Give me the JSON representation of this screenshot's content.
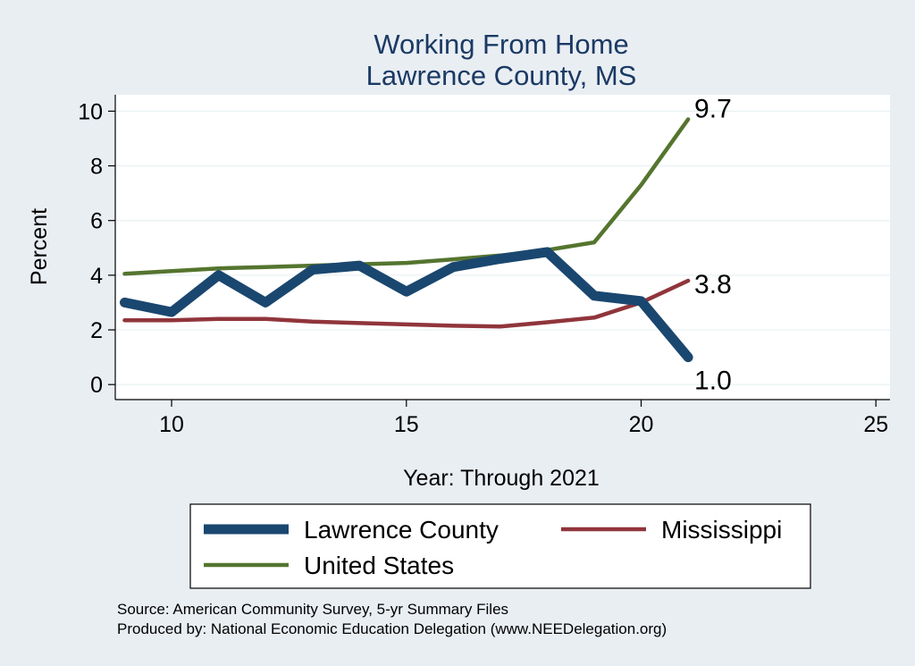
{
  "chart_data": {
    "type": "line",
    "title": [
      "Working From Home",
      "Lawrence County, MS"
    ],
    "xlabel": "Year: Through 2021",
    "ylabel": "Percent",
    "xlim": [
      8.8,
      25.3
    ],
    "ylim": [
      -0.55,
      10.6
    ],
    "xticks": [
      10,
      15,
      20,
      25
    ],
    "yticks": [
      0,
      2,
      4,
      6,
      8,
      10
    ],
    "grid": true,
    "legend_position": "bottom",
    "x": [
      9,
      10,
      11,
      12,
      13,
      14,
      15,
      16,
      17,
      18,
      19,
      20,
      21
    ],
    "series": [
      {
        "name": "Lawrence County",
        "color": "#1a476f",
        "width": 11,
        "values": [
          3.0,
          2.65,
          4.0,
          3.0,
          4.2,
          4.35,
          3.4,
          4.3,
          4.6,
          4.85,
          3.25,
          3.05,
          1.0
        ],
        "end_label": "1.0"
      },
      {
        "name": "Mississippi",
        "color": "#90353b",
        "width": 4.5,
        "values": [
          2.35,
          2.35,
          2.4,
          2.4,
          2.3,
          2.25,
          2.2,
          2.15,
          2.12,
          2.28,
          2.45,
          3.0,
          3.8
        ],
        "end_label": "3.8"
      },
      {
        "name": "United States",
        "color": "#55752f",
        "width": 4.5,
        "values": [
          4.05,
          4.15,
          4.25,
          4.3,
          4.35,
          4.4,
          4.45,
          4.58,
          4.72,
          4.92,
          5.2,
          7.3,
          9.7
        ],
        "end_label": "9.7"
      }
    ],
    "notes": [
      "Source: American Community Survey, 5-yr Summary Files",
      "Produced by: National Economic Education Delegation (www.NEEDelegation.org)"
    ]
  }
}
